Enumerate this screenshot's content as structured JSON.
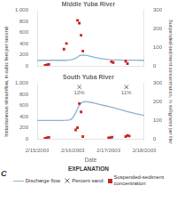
{
  "chart_data": {
    "type": "line",
    "ylabel": "Instantaneous streamflow, in cubic feet per second",
    "y2label": "Suspended-sediment concentration, in milligrams per liter",
    "xlabel": "Date",
    "panel_label": "C",
    "legend_title": "EXPLANATION",
    "legend": "bottom",
    "grid": false,
    "xlim": [
      0,
      3
    ],
    "xticks": [
      {
        "value": 0,
        "label": "2/15/2003"
      },
      {
        "value": 1,
        "label": "2/16/2003"
      },
      {
        "value": 2,
        "label": "2/17/2003"
      },
      {
        "value": 3,
        "label": "2/18/2003"
      }
    ],
    "ylim": [
      0,
      1000
    ],
    "yticks": [
      0,
      200,
      400,
      600,
      800,
      {
        "value": 1000,
        "label": "1,000"
      }
    ],
    "y2lim": [
      0,
      300
    ],
    "y2ticks": [
      0,
      100,
      200,
      300
    ],
    "panels": [
      {
        "title": "Middle Yuba River",
        "tick_labels": "y",
        "series": [
          {
            "name": "Discharge flow",
            "type": "line",
            "color": "#8ab4d0",
            "x": [
              0.0,
              0.05,
              0.1,
              0.2,
              0.3,
              0.4,
              0.5,
              0.6,
              0.7,
              0.8,
              0.85,
              0.9,
              0.95,
              1.0,
              1.05,
              1.1,
              1.15,
              1.2,
              1.3,
              1.4,
              1.5,
              1.6,
              1.7,
              1.8,
              1.9,
              2.0,
              2.1,
              2.2,
              2.3,
              2.4,
              2.5,
              2.6,
              2.7,
              2.8,
              2.9,
              3.0
            ],
            "values": [
              100,
              100,
              100,
              100,
              100,
              100,
              100,
              100,
              100,
              100,
              102,
              105,
              110,
              118,
              130,
              145,
              168,
              188,
              195,
              185,
              170,
              155,
              140,
              130,
              122,
              115,
              110,
              107,
              105,
              103,
              102,
              102,
              101,
              101,
              100,
              100
            ]
          },
          {
            "name": "Suspended-sediment\nconcentration",
            "type": "scatter",
            "marker": "square",
            "color": "#cc2222",
            "axis": "y2",
            "x": [
              0.22,
              0.28,
              0.33,
              0.75,
              0.82,
              1.13,
              1.18,
              1.23,
              1.28,
              2.08,
              2.13,
              2.48,
              2.53
            ],
            "values": [
              3,
              6,
              8,
              90,
              120,
              245,
              230,
              165,
              80,
              22,
              18,
              25,
              12
            ]
          }
        ]
      },
      {
        "title": "South Yuba River",
        "series": [
          {
            "name": "Discharge flow",
            "type": "line",
            "color": "#8ab4d0",
            "x": [
              0.0,
              0.1,
              0.2,
              0.3,
              0.4,
              0.5,
              0.6,
              0.7,
              0.8,
              0.9,
              0.95,
              1.0,
              1.05,
              1.1,
              1.15,
              1.2,
              1.25,
              1.3,
              1.35,
              1.4,
              1.5,
              1.6,
              1.7,
              1.8,
              1.9,
              2.0,
              2.1,
              2.2,
              2.3,
              2.4,
              2.5,
              2.6,
              2.7,
              2.8,
              2.9,
              3.0
            ],
            "values": [
              330,
              330,
              330,
              330,
              330,
              330,
              330,
              330,
              332,
              338,
              350,
              380,
              430,
              500,
              565,
              620,
              650,
              665,
              668,
              665,
              655,
              640,
              625,
              610,
              595,
              580,
              565,
              548,
              530,
              512,
              495,
              478,
              462,
              447,
              432,
              418
            ]
          },
          {
            "name": "Percent sand",
            "type": "annotation",
            "marker": "x",
            "color": "#666666",
            "x": [
              1.18,
              2.5
            ],
            "values": [
              12,
              11
            ],
            "value_labels": [
              "12%",
              "11%"
            ]
          },
          {
            "name": "Suspended-sediment\nconcentration",
            "type": "scatter",
            "marker": "square",
            "color": "#cc2222",
            "axis": "y2",
            "x": [
              0.22,
              0.28,
              0.33,
              1.08,
              1.13,
              1.18,
              1.23,
              1.28,
              2.0,
              2.05,
              2.1,
              2.48,
              2.53,
              2.58
            ],
            "values": [
              3,
              6,
              8,
              48,
              60,
              190,
              145,
              12,
              5,
              7,
              9,
              12,
              18,
              15
            ]
          }
        ]
      }
    ]
  }
}
